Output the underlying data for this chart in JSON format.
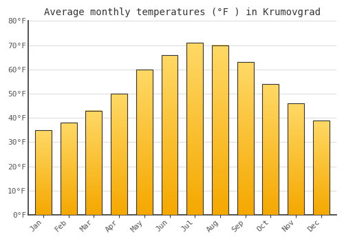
{
  "title": "Average monthly temperatures (°F ) in Krumovgrad",
  "months": [
    "Jan",
    "Feb",
    "Mar",
    "Apr",
    "May",
    "Jun",
    "Jul",
    "Aug",
    "Sep",
    "Oct",
    "Nov",
    "Dec"
  ],
  "values": [
    35,
    38,
    43,
    50,
    60,
    66,
    71,
    70,
    63,
    54,
    46,
    39
  ],
  "bar_color_bottom": "#F5A800",
  "bar_color_top": "#FFD966",
  "ylim": [
    0,
    80
  ],
  "yticks": [
    0,
    10,
    20,
    30,
    40,
    50,
    60,
    70,
    80
  ],
  "ytick_labels": [
    "0°F",
    "10°F",
    "20°F",
    "30°F",
    "40°F",
    "50°F",
    "60°F",
    "70°F",
    "80°F"
  ],
  "background_color": "#ffffff",
  "grid_color": "#dddddd",
  "title_fontsize": 10,
  "tick_fontsize": 8,
  "bar_edge_color": "#333333",
  "bar_width": 0.65
}
